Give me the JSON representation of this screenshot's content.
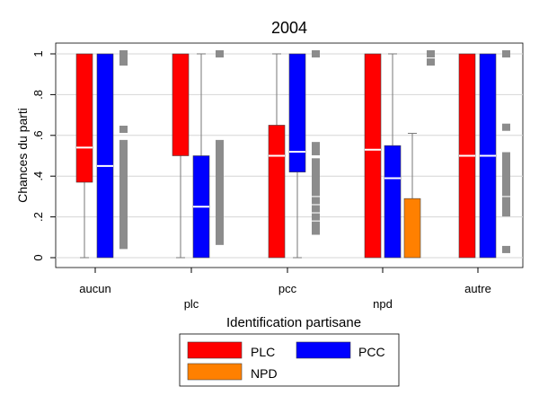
{
  "chart_data": {
    "type": "boxplot",
    "title": "2004",
    "xlabel": "Identification partisane",
    "ylabel": "Chances du parti",
    "ylim": [
      0,
      1
    ],
    "yticks": [
      {
        "value": 0,
        "label": "0"
      },
      {
        "value": 0.2,
        "label": ".2"
      },
      {
        "value": 0.4,
        "label": ".4"
      },
      {
        "value": 0.6,
        "label": ".6"
      },
      {
        "value": 0.8,
        "label": ".8"
      },
      {
        "value": 1,
        "label": "1"
      }
    ],
    "categories": [
      "aucun",
      "plc",
      "pcc",
      "npd",
      "autre"
    ],
    "grid": true,
    "legend_position": "bottom",
    "series": [
      {
        "name": "PLC",
        "color": "#ff0000"
      },
      {
        "name": "PCC",
        "color": "#0000ff"
      },
      {
        "name": "NPD",
        "color": "#ff8000"
      }
    ],
    "groups": [
      {
        "category": "aucun",
        "boxes": [
          {
            "series": "PLC",
            "q1": 0.37,
            "median": 0.54,
            "q3": 1.0,
            "whisker_low": 0.0,
            "whisker_high": 1.0
          },
          {
            "series": "PCC",
            "q1": 0.0,
            "median": 0.45,
            "q3": 1.0,
            "whisker_low": 0.0,
            "whisker_high": 1.0
          }
        ],
        "outliers": [
          0.06,
          0.09,
          0.12,
          0.15,
          0.18,
          0.2,
          0.22,
          0.24,
          0.26,
          0.28,
          0.3,
          0.32,
          0.34,
          0.36,
          0.38,
          0.4,
          0.42,
          0.44,
          0.46,
          0.48,
          0.5,
          0.52,
          0.54,
          0.56,
          0.63,
          0.96,
          0.98,
          1.0
        ]
      },
      {
        "category": "plc",
        "boxes": [
          {
            "series": "PLC",
            "q1": 0.5,
            "median": 1.0,
            "q3": 1.0,
            "whisker_low": 0.0,
            "whisker_high": 1.0
          },
          {
            "series": "PCC",
            "q1": 0.0,
            "median": 0.25,
            "q3": 0.5,
            "whisker_low": 0.0,
            "whisker_high": 1.0
          }
        ],
        "outliers": [
          0.08,
          0.11,
          0.14,
          0.17,
          0.2,
          0.22,
          0.24,
          0.26,
          0.28,
          0.3,
          0.32,
          0.34,
          0.36,
          0.38,
          0.4,
          0.42,
          0.44,
          0.46,
          0.48,
          0.5,
          0.52,
          0.54,
          0.56,
          1.0
        ]
      },
      {
        "category": "pcc",
        "boxes": [
          {
            "series": "PLC",
            "q1": 0.0,
            "median": 0.5,
            "q3": 0.65,
            "whisker_low": 0.0,
            "whisker_high": 1.0
          },
          {
            "series": "PCC",
            "q1": 0.42,
            "median": 0.52,
            "q3": 1.0,
            "whisker_low": 0.0,
            "whisker_high": 1.0
          }
        ],
        "outliers": [
          0.13,
          0.16,
          0.2,
          0.24,
          0.28,
          0.32,
          0.35,
          0.38,
          0.41,
          0.44,
          0.47,
          0.52,
          0.55,
          1.0
        ]
      },
      {
        "category": "npd",
        "boxes": [
          {
            "series": "PLC",
            "q1": 0.0,
            "median": 0.53,
            "q3": 1.0,
            "whisker_low": 0.0,
            "whisker_high": 1.0
          },
          {
            "series": "PCC",
            "q1": 0.0,
            "median": 0.39,
            "q3": 0.55,
            "whisker_low": 0.0,
            "whisker_high": 1.0
          },
          {
            "series": "NPD",
            "q1": 0.0,
            "median": 0.0,
            "q3": 0.29,
            "whisker_low": 0.0,
            "whisker_high": 0.61
          }
        ],
        "outliers": [
          0.96,
          1.0
        ]
      },
      {
        "category": "autre",
        "boxes": [
          {
            "series": "PLC",
            "q1": 0.0,
            "median": 0.5,
            "q3": 1.0,
            "whisker_low": 0.0,
            "whisker_high": 1.0
          },
          {
            "series": "PCC",
            "q1": 0.0,
            "median": 0.5,
            "q3": 1.0,
            "whisker_low": 0.0,
            "whisker_high": 1.0
          }
        ],
        "outliers": [
          0.04,
          0.22,
          0.25,
          0.28,
          0.32,
          0.35,
          0.38,
          0.41,
          0.44,
          0.47,
          0.5,
          0.64,
          1.0
        ]
      }
    ]
  }
}
